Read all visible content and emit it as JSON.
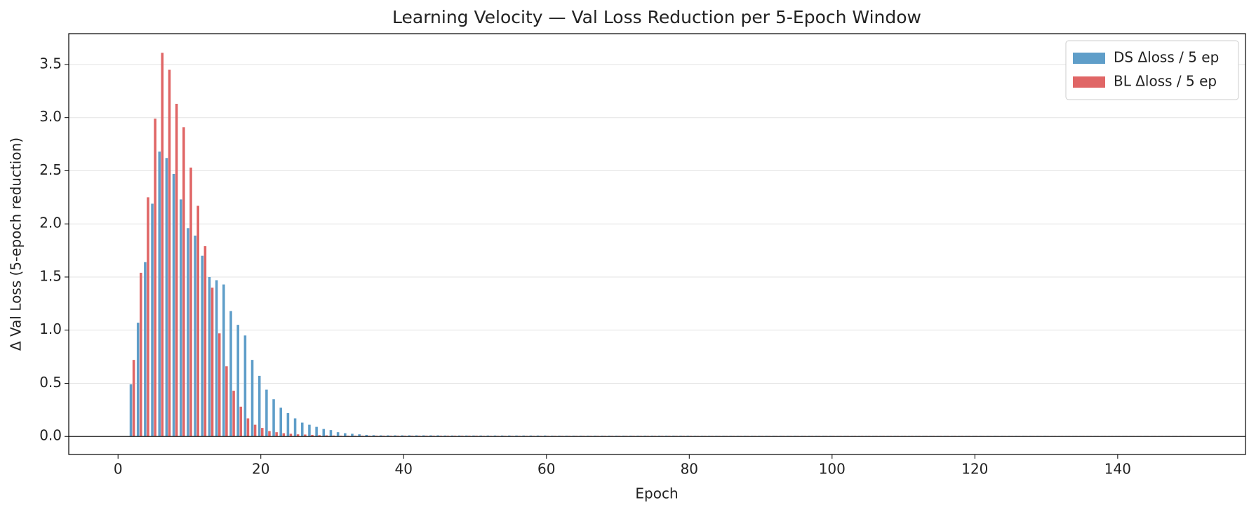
{
  "chart_data": {
    "type": "bar",
    "title": "Learning Velocity — Val Loss Reduction per 5-Epoch Window",
    "xlabel": "Epoch",
    "ylabel": "Δ Val Loss (5-epoch reduction)",
    "x": [
      2,
      3,
      4,
      5,
      6,
      7,
      8,
      9,
      10,
      11,
      12,
      13,
      14,
      15,
      16,
      17,
      18,
      19,
      20,
      21,
      22,
      23,
      24,
      25,
      26,
      27,
      28,
      29,
      30,
      31,
      32,
      33,
      34,
      35,
      36,
      37,
      38,
      39,
      40,
      41,
      42,
      43,
      44,
      45,
      46,
      47,
      48,
      49,
      50,
      51,
      52,
      53,
      54,
      55,
      56,
      57,
      58,
      59,
      60,
      61,
      62,
      63,
      64,
      65,
      66,
      67,
      68,
      69,
      70,
      71,
      72,
      73,
      74,
      75,
      76,
      77,
      78,
      79,
      80,
      81,
      82,
      83,
      84,
      85,
      86,
      87,
      88,
      89,
      90,
      91,
      92,
      93,
      94,
      95,
      96,
      97,
      98,
      99,
      100,
      101,
      102,
      103,
      104,
      105,
      106,
      107,
      108,
      109,
      110,
      111,
      112,
      113,
      114,
      115,
      116,
      117,
      118,
      119,
      120,
      121,
      122,
      123,
      124,
      125,
      126,
      127,
      128,
      129,
      130,
      131,
      132,
      133,
      134,
      135,
      136,
      137,
      138,
      139,
      140,
      141,
      142,
      143,
      144,
      145,
      146,
      147,
      148,
      149,
      150
    ],
    "series": [
      {
        "name": "DS Δloss / 5 ep",
        "color": "#5f9ec9",
        "values": [
          0.49,
          1.07,
          1.64,
          2.19,
          2.68,
          2.62,
          2.47,
          2.23,
          1.96,
          1.89,
          1.7,
          1.5,
          1.47,
          1.43,
          1.18,
          1.05,
          0.95,
          0.72,
          0.57,
          0.44,
          0.35,
          0.27,
          0.22,
          0.17,
          0.13,
          0.11,
          0.09,
          0.07,
          0.06,
          0.04,
          0.03,
          0.025,
          0.02,
          0.015,
          0.012,
          0.01,
          0.01,
          0.01,
          0.01,
          0.01,
          0.01,
          0.01,
          0.01,
          0.01,
          0.008,
          0.008,
          0.008,
          0.008,
          0.008,
          0.008,
          0.008,
          0.008,
          0.008,
          0.008,
          0.008,
          0.008,
          0.008,
          0.008,
          0.008,
          0.006,
          0.006,
          0.006,
          0.006,
          0.006,
          0.006,
          0.006,
          0.006,
          0.006,
          0.006,
          0.006,
          0.006,
          0.006,
          0.006,
          0.006,
          0.006,
          0.006,
          0.006,
          0.006,
          0.006,
          0.005,
          0.005,
          0.005,
          0.005,
          0.005,
          0.005,
          0.005,
          0.005,
          0.005,
          0.005,
          0.005,
          0.005,
          0.005,
          0.005,
          0.005,
          0.005,
          0.005,
          0.005,
          0.005,
          0.005,
          0.004,
          0.004,
          0.004,
          0.004,
          0.004,
          0.004,
          0.004,
          0.004,
          0.004,
          0.004,
          0.004,
          0.004,
          0.004,
          0.004,
          0.004,
          0.004,
          0.004,
          0.004,
          0.004,
          0.004,
          0.004,
          0.004,
          0.004,
          0.004,
          0.004,
          0.004,
          0.004,
          0.004,
          0.004,
          0.004,
          0.003,
          0.003,
          0.003,
          0.003,
          0.003,
          0.003,
          0.003,
          0.003,
          0.003,
          0.003,
          0.003,
          0.003,
          0.003,
          0.003,
          0.003,
          0.003,
          0.003,
          0.003,
          0.003,
          0.003
        ]
      },
      {
        "name": "BL Δloss / 5 ep",
        "color": "#e06666",
        "values": [
          0.72,
          1.54,
          2.25,
          2.99,
          3.61,
          3.45,
          3.13,
          2.91,
          2.53,
          2.17,
          1.79,
          1.4,
          0.97,
          0.66,
          0.43,
          0.28,
          0.17,
          0.11,
          0.08,
          0.05,
          0.04,
          0.03,
          0.025,
          0.02,
          0.018,
          0.015,
          0.012,
          0.01,
          0.008,
          0.006,
          0.006,
          0.006,
          0.006,
          0.006,
          0.006,
          0.006,
          0.006,
          0.006,
          0.006,
          0.006,
          0.006,
          0.006,
          0.006,
          0.006,
          0.006,
          0.006,
          0.006,
          0.006,
          0.006,
          0.005,
          0.005,
          0.005,
          0.005,
          0.005,
          0.005,
          0.005,
          0.005,
          0.005,
          0.005,
          0.005,
          0.005,
          0.005,
          0.005,
          0.005,
          0.005,
          0.005,
          0.005,
          0.005,
          0.005,
          0.005,
          0.005,
          0.005,
          0.005,
          0.005,
          0.005,
          0.005,
          0.005,
          0.005,
          0.005,
          0.004,
          0.004,
          0.004,
          0.004,
          0.004,
          0.004,
          0.004,
          0.004,
          0.004,
          0.004,
          0.004,
          0.004,
          0.004,
          0.004,
          0.004,
          0.004,
          0.004,
          0.004,
          0.004,
          0.004,
          0.004,
          0.004,
          0.004,
          0.004,
          0.004,
          0.004,
          0.004,
          0.004,
          0.004,
          0.004,
          0.004,
          0.004,
          0.004,
          0.004,
          0.004,
          0.004,
          0.004,
          0.004,
          0.004,
          0.004,
          0.003,
          0.003,
          0.003,
          0.003,
          0.003,
          0.003,
          0.003,
          0.003,
          0.003,
          0.003,
          0.003,
          0.003,
          0.003,
          0.003,
          0.003,
          0.003,
          0.003,
          0.003,
          0.003,
          0.003,
          0.003,
          0.003,
          0.003,
          0.003,
          0.003,
          0.003,
          0.003,
          0.003,
          0.003,
          0.003
        ]
      }
    ],
    "xlim": [
      -6.9,
      157.9
    ],
    "xticks": [
      0,
      20,
      40,
      60,
      80,
      100,
      120,
      140
    ],
    "ylim": [
      -0.17,
      3.79
    ],
    "yticks": [
      {
        "value": 0,
        "label": "0.0"
      },
      0.5,
      {
        "value": 1,
        "label": "1.0"
      },
      1.5,
      {
        "value": 2,
        "label": "2.0"
      },
      2.5,
      {
        "value": 3,
        "label": "3.0"
      },
      3.5
    ],
    "grid": true,
    "legend": "upper right"
  }
}
